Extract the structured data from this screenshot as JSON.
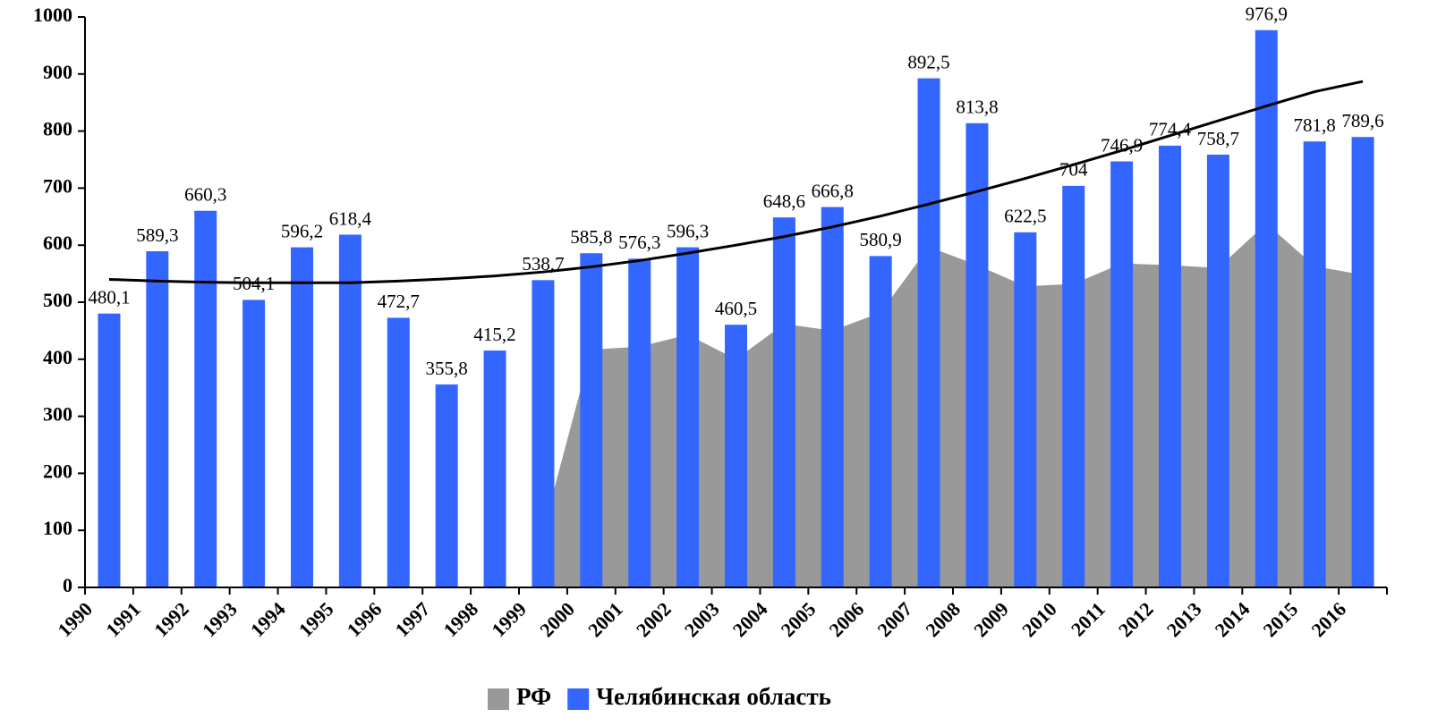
{
  "chart_data": {
    "type": "bar",
    "categories": [
      "1990",
      "1991",
      "1992",
      "1993",
      "1994",
      "1995",
      "1996",
      "1997",
      "1998",
      "1999",
      "2000",
      "2001",
      "2002",
      "2003",
      "2004",
      "2005",
      "2006",
      "2007",
      "2008",
      "2009",
      "2010",
      "2011",
      "2012",
      "2013",
      "2014",
      "2015",
      "2016"
    ],
    "series": [
      {
        "name": "РФ",
        "type": "area",
        "color": "#999999",
        "values": [
          null,
          null,
          null,
          null,
          null,
          null,
          null,
          null,
          null,
          100,
          417,
          422,
          443,
          400,
          462,
          450,
          482,
          597,
          565,
          528,
          532,
          568,
          565,
          560,
          638,
          563,
          548
        ]
      },
      {
        "name": "Челябинская область",
        "type": "bar",
        "color": "#3366ff",
        "values": [
          480.1,
          589.3,
          660.3,
          504.1,
          596.2,
          618.4,
          472.7,
          355.8,
          415.2,
          538.7,
          585.8,
          576.3,
          596.3,
          460.5,
          648.6,
          666.8,
          580.9,
          892.5,
          813.8,
          622.5,
          704,
          746.9,
          774.4,
          758.7,
          976.9,
          781.8,
          789.6
        ],
        "value_labels": [
          "480,1",
          "589,3",
          "660,3",
          "504,1",
          "596,2",
          "618,4",
          "472,7",
          "355,8",
          "415,2",
          "538,7",
          "585,8",
          "576,3",
          "596,3",
          "460,5",
          "648,6",
          "666,8",
          "580,9",
          "892,5",
          "813,8",
          "622,5",
          "704",
          "746,9",
          "774,4",
          "758,7",
          "976,9",
          "781,8",
          "789,6"
        ]
      }
    ],
    "trendline": {
      "color": "#000000",
      "values": [
        540,
        537,
        535,
        534,
        534,
        534,
        537,
        541,
        546,
        553,
        562,
        573,
        586,
        600,
        615,
        632,
        651,
        672,
        694,
        717,
        741,
        766,
        792,
        818,
        844,
        869,
        887
      ]
    },
    "ylim": [
      0,
      1000
    ],
    "yticks": [
      0,
      100,
      200,
      300,
      400,
      500,
      600,
      700,
      800,
      900,
      1000
    ],
    "legend": "bottom"
  }
}
